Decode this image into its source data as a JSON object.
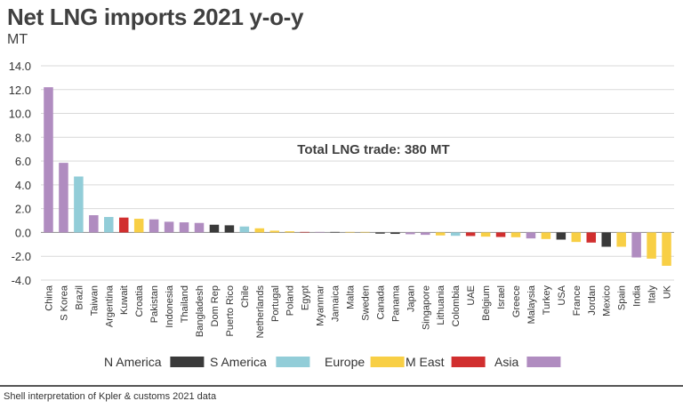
{
  "title": "Net LNG imports 2021 y-o-y",
  "unit": "MT",
  "footer": "Shell interpretation of Kpler & customs 2021 data",
  "chart_data": {
    "type": "bar",
    "title": "Net LNG imports 2021 y-o-y",
    "ylabel": "MT",
    "ylim": [
      -4.0,
      14.0
    ],
    "yticks": [
      "14.0",
      "12.0",
      "10.0",
      "8.0",
      "6.0",
      "4.0",
      "2.0",
      "0.0",
      "-2.0",
      "-4.0"
    ],
    "grid": true,
    "annotation": "Total LNG trade: 380 MT",
    "legend_position": "bottom",
    "legend": [
      {
        "name": "N America",
        "color": "#3a3a3a"
      },
      {
        "name": "S America",
        "color": "#92cdd8"
      },
      {
        "name": "Europe",
        "color": "#f8cf45"
      },
      {
        "name": "M East",
        "color": "#d12f2f"
      },
      {
        "name": "Asia",
        "color": "#b08cc0"
      }
    ],
    "categories": [
      "China",
      "S Korea",
      "Brazil",
      "Taiwan",
      "Argentina",
      "Kuwait",
      "Croatia",
      "Pakistan",
      "Indonesia",
      "Thailand",
      "Bangladesh",
      "Dom Rep",
      "Puerto Rico",
      "Chile",
      "Netherlands",
      "Portugal",
      "Poland",
      "Egypt",
      "Myanmar",
      "Jamaica",
      "Malta",
      "Sweden",
      "Canada",
      "Panama",
      "Japan",
      "Singapore",
      "Lithuania",
      "Colombia",
      "UAE",
      "Belgium",
      "Israel",
      "Greece",
      "Malaysia",
      "Turkey",
      "USA",
      "France",
      "Jordan",
      "Mexico",
      "Spain",
      "India",
      "Italy",
      "UK"
    ],
    "values": [
      12.2,
      5.85,
      4.7,
      1.45,
      1.3,
      1.25,
      1.15,
      1.1,
      0.9,
      0.85,
      0.8,
      0.65,
      0.6,
      0.5,
      0.35,
      0.15,
      0.1,
      0.03,
      0.02,
      0.02,
      0.01,
      0.01,
      -0.1,
      -0.12,
      -0.15,
      -0.2,
      -0.25,
      -0.28,
      -0.3,
      -0.35,
      -0.38,
      -0.4,
      -0.5,
      -0.55,
      -0.6,
      -0.8,
      -0.85,
      -1.2,
      -1.2,
      -2.1,
      -2.2,
      -2.8
    ],
    "regions": [
      "Asia",
      "Asia",
      "S America",
      "Asia",
      "S America",
      "M East",
      "Europe",
      "Asia",
      "Asia",
      "Asia",
      "Asia",
      "N America",
      "N America",
      "S America",
      "Europe",
      "Europe",
      "Europe",
      "M East",
      "Asia",
      "N America",
      "Europe",
      "Europe",
      "N America",
      "N America",
      "Asia",
      "Asia",
      "Europe",
      "S America",
      "M East",
      "Europe",
      "M East",
      "Europe",
      "Asia",
      "Europe",
      "N America",
      "Europe",
      "M East",
      "N America",
      "Europe",
      "Asia",
      "Europe",
      "Europe"
    ]
  }
}
